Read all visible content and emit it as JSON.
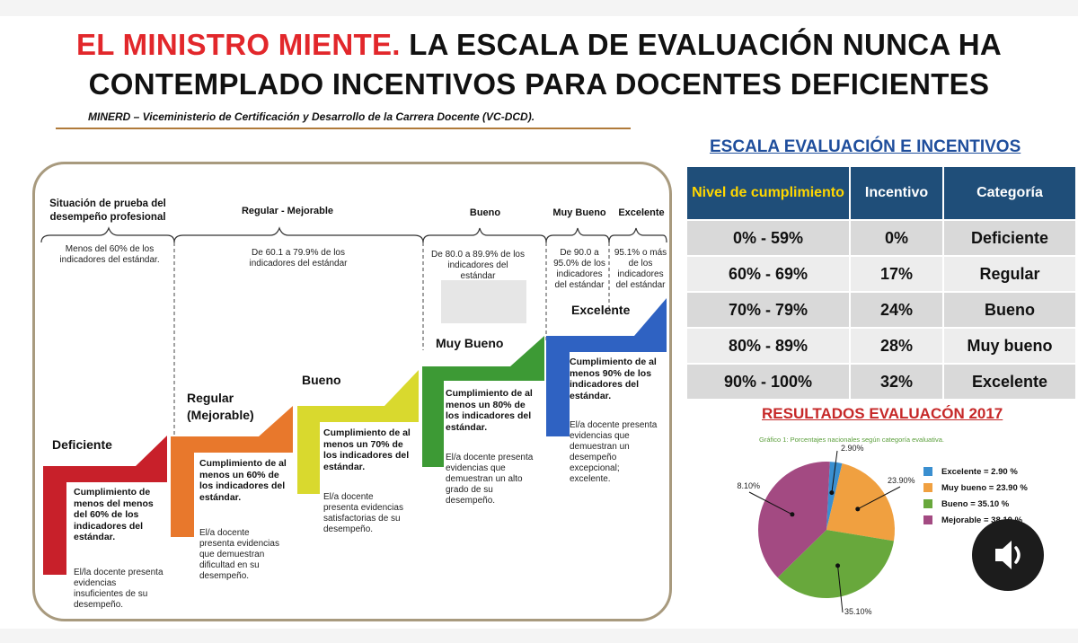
{
  "title": {
    "red": "EL MINISTRO MIENTE.",
    "line1_rest": " LA ESCALA DE EVALUACIÓN NUNCA HA",
    "line2": "CONTEMPLADO INCENTIVOS PARA DOCENTES DEFICIENTES"
  },
  "source": "MINERD – Viceministerio  de Certificación y Desarrollo de la Carrera Docente (VC-DCD).",
  "scale_diagram": {
    "headers": {
      "situacion": "Situación de prueba del desempeño profesional",
      "regular": "Regular - Mejorable",
      "bueno": "Bueno",
      "muy_bueno": "Muy Bueno",
      "excelente": "Excelente"
    },
    "ranges": {
      "deficiente": "Menos del 60% de los indicadores del estándar.",
      "regular": "De 60.1 a 79.9% de los indicadores del estándar",
      "bueno": "De 80.0 a 89.9% de los indicadores del estándar",
      "muy_bueno": "De 90.0 a 95.0% de los indicadores del estándar",
      "excelente": "95.1% o más de los indicadores del estándar"
    },
    "steps": [
      {
        "name": "Deficiente",
        "bold": "Cumplimiento de menos del menos del 60% de los indicadores del estándar.",
        "note": "El/la docente presenta evidencias insuficientes de su desempeño."
      },
      {
        "name": "Regular (Mejorable)",
        "bold": "Cumplimiento  de al menos un 60% de los indicadores del estándar.",
        "note": "El/a docente presenta evidencias que demuestran dificultad en su desempeño."
      },
      {
        "name": "Bueno",
        "bold": "Cumplimiento de al menos un 70% de los indicadores del estándar.",
        "note": "El/a docente presenta evidencias satisfactorias de su desempeño."
      },
      {
        "name": "Muy Bueno",
        "bold": "Cumplimiento de al menos un 80% de los indicadores del estándar.",
        "note": "El/a docente presenta evidencias que demuestran un alto grado de su desempeño."
      },
      {
        "name": "Excelente",
        "bold": "Cumplimiento de al menos 90% de los indicadores del estándar.",
        "note": "El/a docente presenta evidencias que demuestran un desempeño excepcional; excelente."
      }
    ],
    "colors": {
      "deficiente": "#c8202a",
      "regular": "#e8782c",
      "bueno": "#d9d92e",
      "muy_bueno": "#3d9a35",
      "excelente": "#2f62c2"
    }
  },
  "incentive_table": {
    "title": "ESCALA EVALUACIÓN E INCENTIVOS",
    "headers": [
      "Nivel de cumplimiento",
      "Incentivo",
      "Categoría"
    ],
    "rows": [
      [
        "0% - 59%",
        "0%",
        "Deficiente"
      ],
      [
        "60% - 69%",
        "17%",
        "Regular"
      ],
      [
        "70% - 79%",
        "24%",
        "Bueno"
      ],
      [
        "80% - 89%",
        "28%",
        "Muy bueno"
      ],
      [
        "90% - 100%",
        "32%",
        "Excelente"
      ]
    ]
  },
  "results": {
    "title": "RESULTADOS EVALUACÓN 2017",
    "caption": "Gráfico 1:  Porcentajes nacionales según categoría evaluativa."
  },
  "chart_data": {
    "type": "pie",
    "title": "RESULTADOS EVALUACÓN 2017",
    "categories": [
      "Excelente",
      "Muy bueno",
      "Bueno",
      "Mejorable"
    ],
    "values": [
      2.9,
      23.9,
      35.1,
      38.1
    ],
    "slice_labels": [
      "2.90%",
      "23.90%",
      "35.10%",
      "38.10%"
    ],
    "legend": [
      "Excelente = 2.90 %",
      "Muy bueno = 23.90 %",
      "Bueno = 35.10 %",
      "Mejorable = 38.10 %"
    ],
    "colors": [
      "#3a8fd0",
      "#f0a040",
      "#68a83c",
      "#a34a82"
    ],
    "legend_position": "right"
  },
  "sound_icon": "speaker-icon"
}
